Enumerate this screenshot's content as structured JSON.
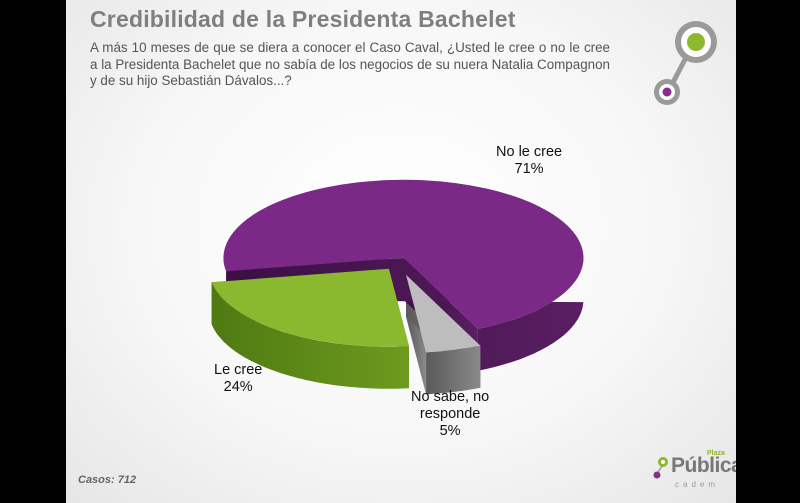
{
  "title": "Credibilidad de la Presidenta Bachelet",
  "subtitle": "A más 10 meses de que se diera a conocer el Caso Caval, ¿Usted le cree o no le cree a la Presidenta Bachelet que no sabía de los negocios de su nuera Natalia Compagnon y de su hijo Sebastián Dávalos...?",
  "footer": {
    "cases": "Casos: 712"
  },
  "brand": {
    "name": "Pública",
    "top": "Plaza",
    "sub": "cadem"
  },
  "colors": {
    "no_le_cree": "#7a2a86",
    "le_cree": "#8ab82e",
    "no_sabe": "#bdbdbd",
    "accent_green": "#8cba2c",
    "accent_purple": "#8a2c8e"
  },
  "chart_data": {
    "type": "pie",
    "title": "Credibilidad de la Presidenta Bachelet",
    "slices": [
      {
        "label": "No le cree",
        "value": 71,
        "display": "71%",
        "color": "#7a2a86"
      },
      {
        "label": "Le cree",
        "value": 24,
        "display": "24%",
        "color": "#8ab82e"
      },
      {
        "label": "No sabe, no responde",
        "value": 5,
        "display": "5%",
        "color": "#bdbdbd"
      }
    ],
    "style": "3d-exploded"
  },
  "labels": [
    {
      "cat": "No le cree",
      "val": "71%"
    },
    {
      "cat": "Le cree",
      "val": "24%"
    },
    {
      "cat": "No sabe, no\nresponde",
      "val": "5%"
    }
  ]
}
